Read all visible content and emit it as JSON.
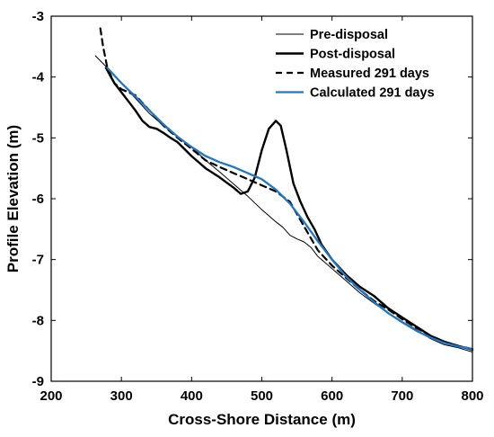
{
  "chart_data": {
    "type": "line",
    "xlabel": "Cross-Shore Distance (m)",
    "ylabel": "Profile Elevation (m)",
    "xlim": [
      200,
      800
    ],
    "ylim": [
      -9,
      -3
    ],
    "xticks": [
      200,
      300,
      400,
      500,
      600,
      700,
      800
    ],
    "yticks": [
      -3,
      -4,
      -5,
      -6,
      -7,
      -8,
      -9
    ],
    "grid": false,
    "legend_position": "top-right",
    "series": [
      {
        "name": "Pre-disposal",
        "style": "thin-solid",
        "color": "#000000",
        "x": [
          263,
          280,
          300,
          320,
          340,
          360,
          380,
          400,
          420,
          440,
          460,
          480,
          500,
          510,
          520,
          530,
          540,
          550,
          560,
          570,
          580,
          600,
          620,
          640,
          660,
          680,
          700,
          720,
          740,
          760,
          780,
          800
        ],
        "y": [
          -3.65,
          -3.85,
          -4.1,
          -4.35,
          -4.6,
          -4.8,
          -4.98,
          -5.15,
          -5.37,
          -5.56,
          -5.76,
          -5.96,
          -6.18,
          -6.28,
          -6.38,
          -6.47,
          -6.6,
          -6.66,
          -6.71,
          -6.8,
          -6.95,
          -7.15,
          -7.35,
          -7.55,
          -7.72,
          -7.88,
          -8.02,
          -8.15,
          -8.3,
          -8.4,
          -8.45,
          -8.52
        ]
      },
      {
        "name": "Post-disposal",
        "style": "thick-solid",
        "color": "#000000",
        "x": [
          278,
          290,
          300,
          310,
          320,
          330,
          340,
          350,
          360,
          370,
          380,
          400,
          420,
          440,
          460,
          470,
          480,
          490,
          500,
          510,
          520,
          527,
          535,
          545,
          555,
          565,
          575,
          585,
          600,
          620,
          640,
          660,
          680,
          700,
          720,
          740,
          760,
          780,
          800
        ],
        "y": [
          -3.85,
          -4.1,
          -4.25,
          -4.4,
          -4.55,
          -4.72,
          -4.82,
          -4.85,
          -4.92,
          -5.0,
          -5.07,
          -5.3,
          -5.5,
          -5.65,
          -5.82,
          -5.92,
          -5.88,
          -5.65,
          -5.2,
          -4.85,
          -4.72,
          -4.8,
          -5.2,
          -5.75,
          -6.05,
          -6.3,
          -6.5,
          -6.75,
          -7.0,
          -7.25,
          -7.45,
          -7.6,
          -7.8,
          -7.95,
          -8.1,
          -8.25,
          -8.35,
          -8.42,
          -8.48
        ]
      },
      {
        "name": "Measured 291 days",
        "style": "dashed",
        "color": "#000000",
        "x": [
          270,
          274,
          280,
          290,
          300,
          320,
          340,
          360,
          380,
          400,
          420,
          440,
          460,
          480,
          500,
          520,
          540,
          560,
          580,
          600,
          620,
          640,
          660,
          680,
          700,
          720,
          740,
          760,
          780,
          800
        ],
        "y": [
          -3.2,
          -3.5,
          -3.85,
          -4.1,
          -4.2,
          -4.3,
          -4.55,
          -4.8,
          -5.0,
          -5.18,
          -5.37,
          -5.48,
          -5.58,
          -5.68,
          -5.78,
          -5.88,
          -6.05,
          -6.45,
          -6.85,
          -7.1,
          -7.3,
          -7.5,
          -7.68,
          -7.82,
          -7.98,
          -8.12,
          -8.25,
          -8.35,
          -8.42,
          -8.47
        ]
      },
      {
        "name": "Calculated 291 days",
        "style": "solid",
        "color": "#1f77c4",
        "x": [
          280,
          300,
          320,
          340,
          360,
          380,
          400,
          420,
          440,
          460,
          480,
          500,
          520,
          540,
          560,
          580,
          600,
          620,
          640,
          660,
          680,
          700,
          720,
          740,
          760,
          780,
          800
        ],
        "y": [
          -3.85,
          -4.1,
          -4.32,
          -4.55,
          -4.78,
          -4.98,
          -5.15,
          -5.3,
          -5.4,
          -5.48,
          -5.58,
          -5.68,
          -5.85,
          -6.08,
          -6.38,
          -6.7,
          -7.0,
          -7.28,
          -7.5,
          -7.7,
          -7.88,
          -8.03,
          -8.17,
          -8.28,
          -8.37,
          -8.43,
          -8.47
        ]
      }
    ]
  }
}
